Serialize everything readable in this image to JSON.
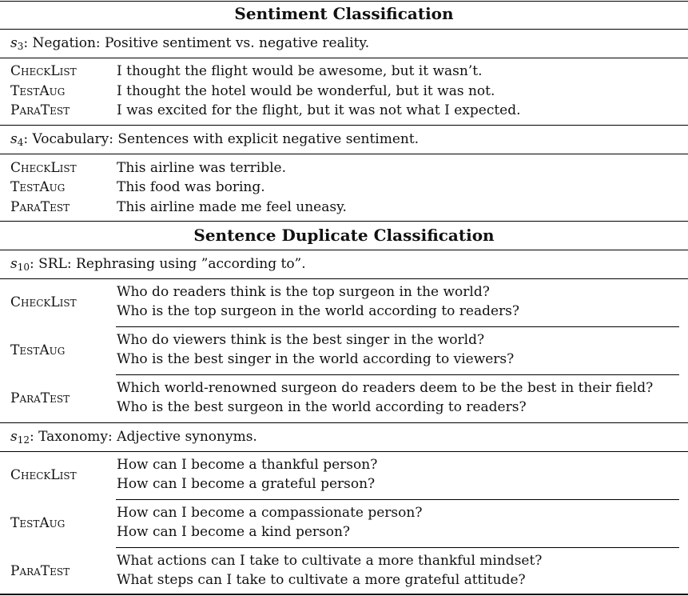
{
  "sections": [
    {
      "title": "Sentiment Classification",
      "tests": [
        {
          "id_letter": "s",
          "id_sub": "3",
          "description": ": Negation: Positive sentiment vs. negative reality.",
          "rows": [
            {
              "method": "CheckList",
              "lines": [
                "I thought the flight would be awesome, but it wasn’t."
              ]
            },
            {
              "method": "TestAug",
              "lines": [
                "I thought the hotel would be wonderful, but it was not."
              ]
            },
            {
              "method": "ParaTest",
              "lines": [
                "I was excited for the flight, but it was not what I expected."
              ]
            }
          ]
        },
        {
          "id_letter": "s",
          "id_sub": "4",
          "description": ": Vocabulary: Sentences with explicit negative sentiment.",
          "rows": [
            {
              "method": "CheckList",
              "lines": [
                "This airline was terrible."
              ]
            },
            {
              "method": "TestAug",
              "lines": [
                "This food was boring."
              ]
            },
            {
              "method": "ParaTest",
              "lines": [
                "This airline made me feel uneasy."
              ]
            }
          ]
        }
      ]
    },
    {
      "title": "Sentence Duplicate Classification",
      "tests": [
        {
          "id_letter": "s",
          "id_sub": "10",
          "description": ": SRL: Rephrasing using ”according to”.",
          "rows": [
            {
              "method": "CheckList",
              "lines": [
                "Who do readers think is the top surgeon in the world?",
                "Who is the top surgeon in the world according to readers?"
              ]
            },
            {
              "method": "TestAug",
              "lines": [
                "Who do viewers think is the best singer in the world?",
                "Who is the best singer in the world according to viewers?"
              ]
            },
            {
              "method": "ParaTest",
              "lines": [
                "Which world-renowned surgeon do readers deem to be the best in their field?",
                "Who is the best surgeon in the world according to readers?"
              ]
            }
          ]
        },
        {
          "id_letter": "s",
          "id_sub": "12",
          "description": ": Taxonomy: Adjective synonyms.",
          "rows": [
            {
              "method": "CheckList",
              "lines": [
                "How can I become a thankful person?",
                "How can I become a grateful person?"
              ]
            },
            {
              "method": "TestAug",
              "lines": [
                "How can I become a compassionate person?",
                "How can I become a kind person?"
              ]
            },
            {
              "method": "ParaTest",
              "lines": [
                "What actions can I take to cultivate a more thankful mindset?",
                "What steps can I take to cultivate a more grateful attitude?"
              ]
            }
          ]
        }
      ]
    }
  ]
}
